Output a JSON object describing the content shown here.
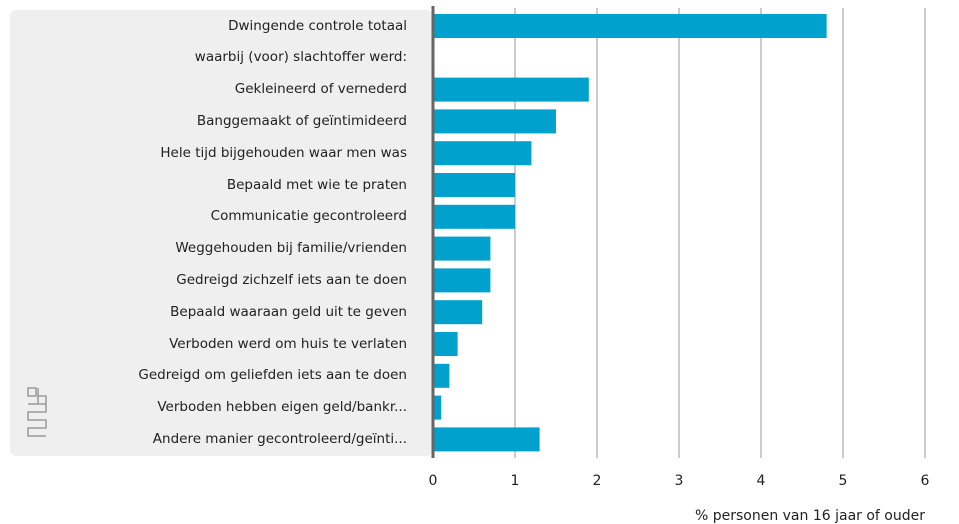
{
  "chart_data": {
    "type": "bar",
    "orientation": "horizontal",
    "categories": [
      "Dwingende controle totaal",
      "waarbij (voor) slachtoffer werd:",
      "Gekleineerd of vernederd",
      "Banggemaakt of geïntimideerd",
      "Hele tijd bijgehouden waar men was",
      "Bepaald met wie te praten",
      "Communicatie gecontroleerd",
      "Weggehouden bij familie/vrienden",
      "Gedreigd zichzelf iets aan te doen",
      "Bepaald waaraan geld uit te geven",
      "Verboden werd om huis te verlaten",
      "Gedreigd om geliefden iets aan te doen",
      "Verboden hebben eigen geld/bankr...",
      "Andere manier gecontroleerd/geïnti..."
    ],
    "values": [
      4.8,
      null,
      1.9,
      1.5,
      1.2,
      1.0,
      1.0,
      0.7,
      0.7,
      0.6,
      0.3,
      0.2,
      0.1,
      1.3
    ],
    "color": "#00a1cd",
    "xlim": [
      0,
      6
    ],
    "xticks": [
      0,
      1,
      2,
      3,
      4,
      5,
      6
    ],
    "grid": true,
    "x_label": "% personen van 16 jaar of ouder"
  }
}
